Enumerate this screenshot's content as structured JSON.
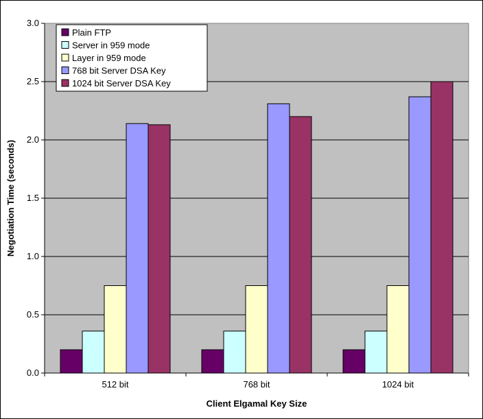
{
  "chart_data": {
    "type": "bar",
    "title": "",
    "xlabel": "Client Elgamal Key Size",
    "ylabel": "Negotiation Time (seconds)",
    "categories": [
      "512 bit",
      "768 bit",
      "1024 bit"
    ],
    "ylim": [
      0,
      3.0
    ],
    "yticks": [
      "0.0",
      "0.5",
      "1.0",
      "1.5",
      "2.0",
      "2.5",
      "3.0"
    ],
    "grid": true,
    "legend_position": "top-left",
    "plot_background": "#c0c0c0",
    "series": [
      {
        "name": "Plain FTP",
        "color": "#660066",
        "values": [
          0.2,
          0.2,
          0.2
        ]
      },
      {
        "name": "Server in 959 mode",
        "color": "#ccffff",
        "values": [
          0.36,
          0.36,
          0.36
        ]
      },
      {
        "name": "Layer in 959 mode",
        "color": "#ffffcc",
        "values": [
          0.75,
          0.75,
          0.75
        ]
      },
      {
        "name": "768 bit Server DSA Key",
        "color": "#9999ff",
        "values": [
          2.14,
          2.31,
          2.37
        ]
      },
      {
        "name": "1024 bit Server DSA Key",
        "color": "#993366",
        "values": [
          2.13,
          2.2,
          2.5
        ]
      }
    ]
  }
}
